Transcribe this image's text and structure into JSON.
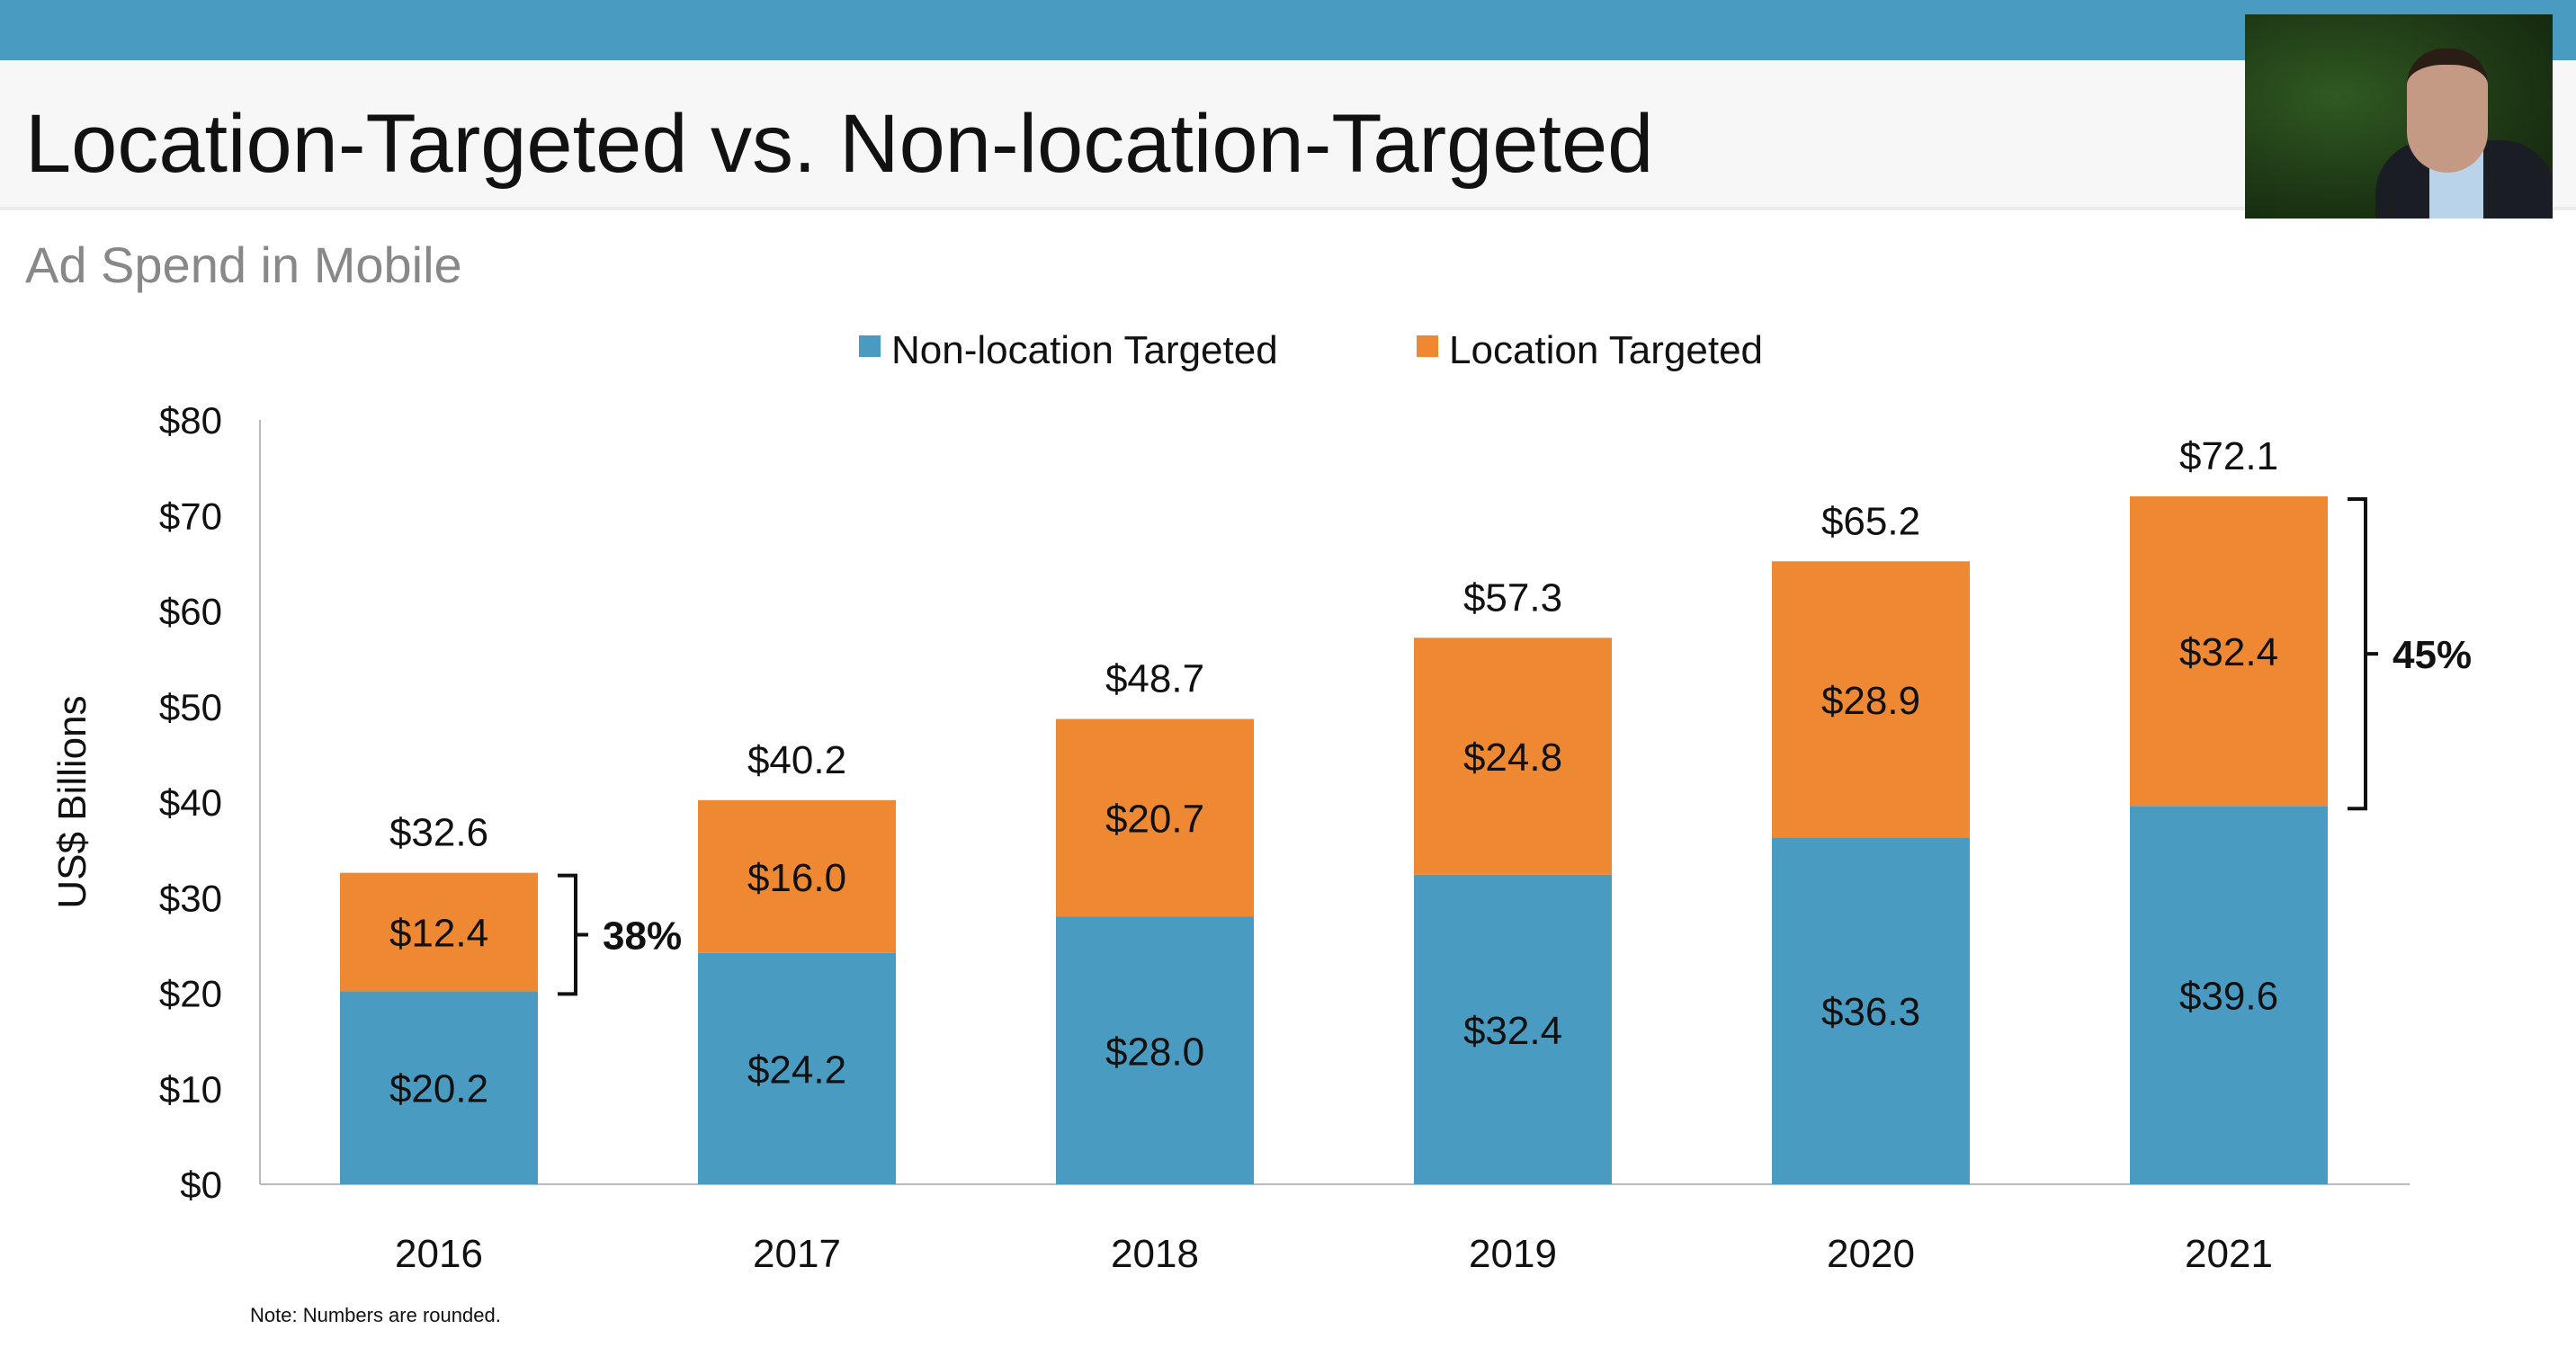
{
  "header": {
    "title": "Location-Targeted vs. Non-location-Targeted",
    "subtitle": "Ad Spend in Mobile"
  },
  "note": "Note: Numbers are rounded.",
  "colors": {
    "bar_blue": "#4a9bc1",
    "bar_orange": "#ee8833",
    "top_bar": "#4a9bc1"
  },
  "chart_data": {
    "type": "bar",
    "stacked": true,
    "categories": [
      "2016",
      "2017",
      "2018",
      "2019",
      "2020",
      "2021"
    ],
    "series": [
      {
        "name": "Non-location Targeted",
        "values": [
          20.2,
          24.2,
          28.0,
          32.4,
          36.3,
          39.6
        ],
        "labels": [
          "$20.2",
          "$24.2",
          "$28.0",
          "$32.4",
          "$36.3",
          "$39.6"
        ]
      },
      {
        "name": "Location Targeted",
        "values": [
          12.4,
          16.0,
          20.7,
          24.8,
          28.9,
          32.4
        ],
        "labels": [
          "$12.4",
          "$16.0",
          "$20.7",
          "$24.8",
          "$28.9",
          "$32.4"
        ]
      }
    ],
    "totals": [
      "$32.6",
      "$40.2",
      "$48.7",
      "$57.3",
      "$65.2",
      "$72.1"
    ],
    "ylabel": "US$ Billions",
    "ylim": [
      0,
      80
    ],
    "yticks": [
      "$0",
      "$10",
      "$20",
      "$30",
      "$40",
      "$50",
      "$60",
      "$70",
      "$80"
    ],
    "legend_position": "top-center",
    "grid": false,
    "annotations": [
      {
        "category": "2016",
        "text": "38%"
      },
      {
        "category": "2021",
        "text": "45%"
      }
    ]
  }
}
